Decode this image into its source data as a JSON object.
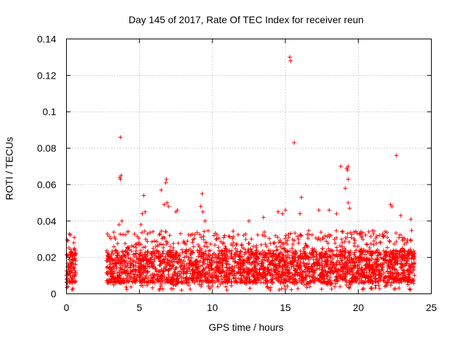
{
  "chart_data": {
    "type": "scatter",
    "title": "Day 145 of 2017, Rate Of TEC Index for receiver reun",
    "xlabel": "GPS time / hours",
    "ylabel": "ROTI / TECUs",
    "xlim": [
      0,
      25
    ],
    "ylim": [
      0,
      0.14
    ],
    "xticks": [
      0,
      5,
      10,
      15,
      20,
      25
    ],
    "xtick_labels": [
      "0",
      "5",
      "10",
      "15",
      "20",
      "25"
    ],
    "yticks": [
      0,
      0.02,
      0.04,
      0.06,
      0.08,
      0.1,
      0.12,
      0.14
    ],
    "ytick_labels": [
      "0",
      "0.02",
      "0.04",
      "0.06",
      "0.08",
      "0.1",
      "0.12",
      "0.14"
    ],
    "grid": true,
    "marker": "+",
    "color": "#ff0000",
    "series": [
      {
        "name": "ROTI",
        "points": [
          [
            0.05,
            0.021
          ],
          [
            0.1,
            0.015
          ],
          [
            0.2,
            0.019
          ],
          [
            0.3,
            0.012
          ],
          [
            0.35,
            0.008
          ],
          [
            0.4,
            0.016
          ],
          [
            0.45,
            0.022
          ],
          [
            0.5,
            0.028
          ],
          [
            0.55,
            0.025
          ],
          [
            0.6,
            0.024
          ],
          [
            0.1,
            0.004
          ],
          [
            0.25,
            0.006
          ],
          [
            0.45,
            0.003
          ],
          [
            3.7,
            0.086
          ],
          [
            3.65,
            0.064
          ],
          [
            3.7,
            0.063
          ],
          [
            3.75,
            0.065
          ],
          [
            3.6,
            0.038
          ],
          [
            3.8,
            0.04
          ],
          [
            5.3,
            0.054
          ],
          [
            5.2,
            0.044
          ],
          [
            5.4,
            0.045
          ],
          [
            5.1,
            0.038
          ],
          [
            6.5,
            0.057
          ],
          [
            6.7,
            0.049
          ],
          [
            6.8,
            0.061
          ],
          [
            6.85,
            0.063
          ],
          [
            6.9,
            0.05
          ],
          [
            7.0,
            0.048
          ],
          [
            7.6,
            0.046
          ],
          [
            7.5,
            0.045
          ],
          [
            9.3,
            0.055
          ],
          [
            9.2,
            0.048
          ],
          [
            9.35,
            0.045
          ],
          [
            9.5,
            0.04
          ],
          [
            12.5,
            0.04
          ],
          [
            13.5,
            0.042
          ],
          [
            14.5,
            0.045
          ],
          [
            14.8,
            0.044
          ],
          [
            15.0,
            0.046
          ],
          [
            15.3,
            0.13
          ],
          [
            15.35,
            0.128
          ],
          [
            15.6,
            0.083
          ],
          [
            16.1,
            0.053
          ],
          [
            16.0,
            0.044
          ],
          [
            17.3,
            0.046
          ],
          [
            18.0,
            0.046
          ],
          [
            18.5,
            0.044
          ],
          [
            18.8,
            0.07
          ],
          [
            19.2,
            0.069
          ],
          [
            19.3,
            0.07
          ],
          [
            19.25,
            0.068
          ],
          [
            19.3,
            0.063
          ],
          [
            19.1,
            0.058
          ],
          [
            19.3,
            0.05
          ],
          [
            19.4,
            0.047
          ],
          [
            22.2,
            0.049
          ],
          [
            22.3,
            0.048
          ],
          [
            22.6,
            0.076
          ],
          [
            22.9,
            0.043
          ],
          [
            23.6,
            0.041
          ]
        ]
      }
    ],
    "dense_band": {
      "gaps": [
        [
          0.7,
          2.7
        ]
      ],
      "segments": [
        [
          0.0,
          0.65
        ],
        [
          2.75,
          23.85
        ]
      ],
      "core_range": [
        0.006,
        0.024
      ],
      "spike_range": [
        0.024,
        0.042
      ]
    }
  }
}
